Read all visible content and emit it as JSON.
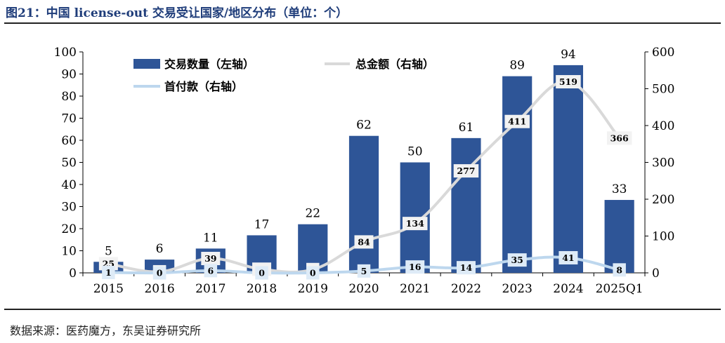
{
  "title": "图21：中国 license-out 交易受让国家/地区分布（单位：个）",
  "source": "数据来源：医药魔方，东吴证券研究所",
  "colors": {
    "bar": "#2e5597",
    "total": "#d9d9d9",
    "upfront": "#bdd7ee",
    "axis": "#000000",
    "title": "#1f3d7a"
  },
  "chart_data": {
    "type": "bar",
    "title": "",
    "categories": [
      "2015",
      "2016",
      "2017",
      "2018",
      "2019",
      "2020",
      "2021",
      "2022",
      "2023",
      "2024",
      "2025Q1"
    ],
    "y_left": {
      "ylim": [
        0,
        100
      ],
      "ticks": [
        0,
        10,
        20,
        30,
        40,
        50,
        60,
        70,
        80,
        90,
        100
      ]
    },
    "y_right": {
      "ylim": [
        0,
        600
      ],
      "ticks": [
        0,
        100,
        200,
        300,
        400,
        500,
        600
      ]
    },
    "series": [
      {
        "name": "交易数量（左轴）",
        "type": "bar",
        "axis": "left",
        "values": [
          5,
          6,
          11,
          17,
          22,
          62,
          50,
          61,
          89,
          94,
          33
        ]
      },
      {
        "name": "总金额（右轴）",
        "type": "line",
        "axis": "right",
        "values": [
          25,
          3,
          39,
          10,
          9,
          84,
          134,
          277,
          411,
          519,
          366
        ]
      },
      {
        "name": "首付款（右轴）",
        "type": "line",
        "axis": "right",
        "values": [
          1,
          0,
          6,
          0,
          0,
          5,
          16,
          14,
          35,
          41,
          8
        ]
      }
    ],
    "legend_position": "top-left",
    "grid": false
  }
}
